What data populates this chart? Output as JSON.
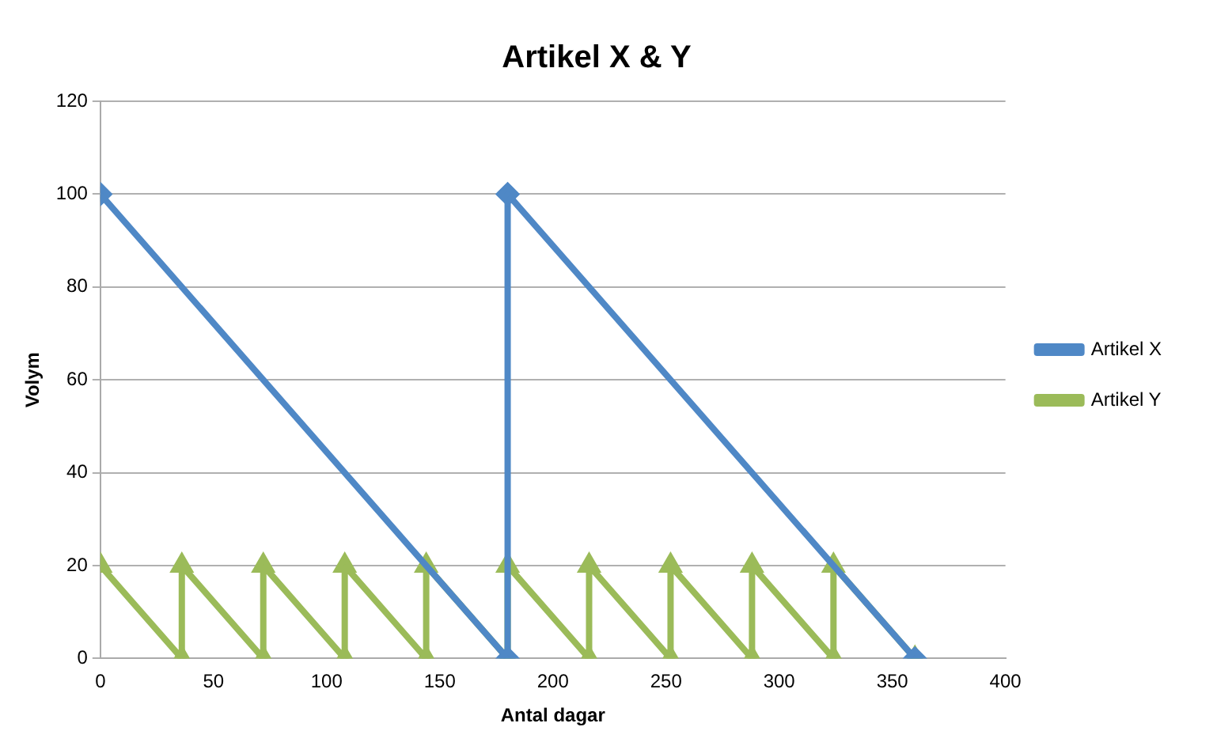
{
  "chart_data": {
    "type": "line",
    "title": "Artikel X & Y",
    "xlabel": "Antal dagar",
    "ylabel": "Volym",
    "xlim": [
      0,
      400
    ],
    "xticks": [
      0,
      50,
      100,
      150,
      200,
      250,
      300,
      350,
      400
    ],
    "ylim": [
      0,
      120
    ],
    "yticks": [
      0,
      20,
      40,
      60,
      80,
      100,
      120
    ],
    "grid": "y",
    "legend": "right",
    "line_style": "solid",
    "series": [
      {
        "name": "Artikel X",
        "color": "#4f88c6",
        "marker": "diamond",
        "x": [
          0,
          180,
          180,
          360
        ],
        "values": [
          100,
          0,
          100,
          0
        ]
      },
      {
        "name": "Artikel Y",
        "color": "#9bbb59",
        "marker": "triangle",
        "x": [
          0,
          36,
          36,
          72,
          72,
          108,
          108,
          144,
          144,
          180,
          180,
          216,
          216,
          252,
          252,
          288,
          288,
          324,
          324,
          360
        ],
        "values": [
          20,
          0,
          20,
          0,
          20,
          0,
          20,
          0,
          20,
          0,
          20,
          0,
          20,
          0,
          20,
          0,
          20,
          0,
          20,
          0
        ]
      }
    ]
  }
}
